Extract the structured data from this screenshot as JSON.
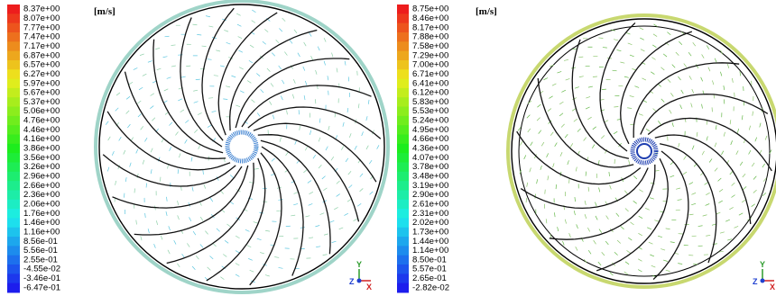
{
  "panels": [
    {
      "unit": "[m/s]",
      "labels": [
        "8.37e+00",
        "8.07e+00",
        "7.77e+00",
        "7.47e+00",
        "7.17e+00",
        "6.87e+00",
        "6.57e+00",
        "6.27e+00",
        "5.97e+00",
        "5.67e+00",
        "5.37e+00",
        "5.06e+00",
        "4.76e+00",
        "4.46e+00",
        "4.16e+00",
        "3.86e+00",
        "3.56e+00",
        "3.26e+00",
        "2.96e+00",
        "2.66e+00",
        "2.36e+00",
        "2.06e+00",
        "1.76e+00",
        "1.46e+00",
        "1.16e+00",
        "8.56e-01",
        "5.56e-01",
        "2.55e-01",
        "-4.55e-02",
        "-3.46e-01",
        "-6.47e-01"
      ],
      "axes": {
        "y": "Y",
        "z": "Z",
        "x": "X"
      }
    },
    {
      "unit": "[m/s]",
      "labels": [
        "8.75e+00",
        "8.46e+00",
        "8.17e+00",
        "7.88e+00",
        "7.58e+00",
        "7.29e+00",
        "7.00e+00",
        "6.71e+00",
        "6.41e+00",
        "6.12e+00",
        "5.83e+00",
        "5.53e+00",
        "5.24e+00",
        "4.95e+00",
        "4.66e+00",
        "4.36e+00",
        "4.07e+00",
        "3.78e+00",
        "3.48e+00",
        "3.19e+00",
        "2.90e+00",
        "2.61e+00",
        "2.31e+00",
        "2.02e+00",
        "1.73e+00",
        "1.44e+00",
        "1.14e+00",
        "8.50e-01",
        "5.57e-01",
        "2.65e-01",
        "-2.82e-02"
      ],
      "axes": {
        "y": "Y",
        "z": "Z",
        "x": "X"
      }
    }
  ]
}
